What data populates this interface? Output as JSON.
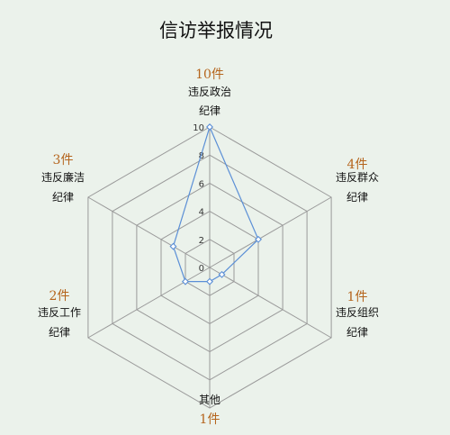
{
  "chart_data": {
    "type": "radar",
    "title": "信访举报情况",
    "categories": [
      {
        "line1": "违反政治",
        "line2": "纪律",
        "count_label": "10件"
      },
      {
        "line1": "违反群众",
        "line2": "纪律",
        "count_label": "4件"
      },
      {
        "line1": "违反组织",
        "line2": "纪律",
        "count_label": "1件"
      },
      {
        "line1": "其他",
        "line2": "",
        "count_label": "1件"
      },
      {
        "line1": "违反工作",
        "line2": "纪律",
        "count_label": "2件"
      },
      {
        "line1": "违反廉洁",
        "line2": "纪律",
        "count_label": "3件"
      }
    ],
    "values": [
      10,
      4,
      1,
      1,
      2,
      3
    ],
    "rlim": [
      0,
      10
    ],
    "ticks": [
      0,
      2,
      4,
      6,
      8,
      10
    ],
    "grid": true,
    "legend": "none",
    "colors": {
      "background": "#ebf2eb",
      "grid": "#9a9a9a",
      "series": "#5b8fd6",
      "count_text": "#b5651d"
    }
  }
}
